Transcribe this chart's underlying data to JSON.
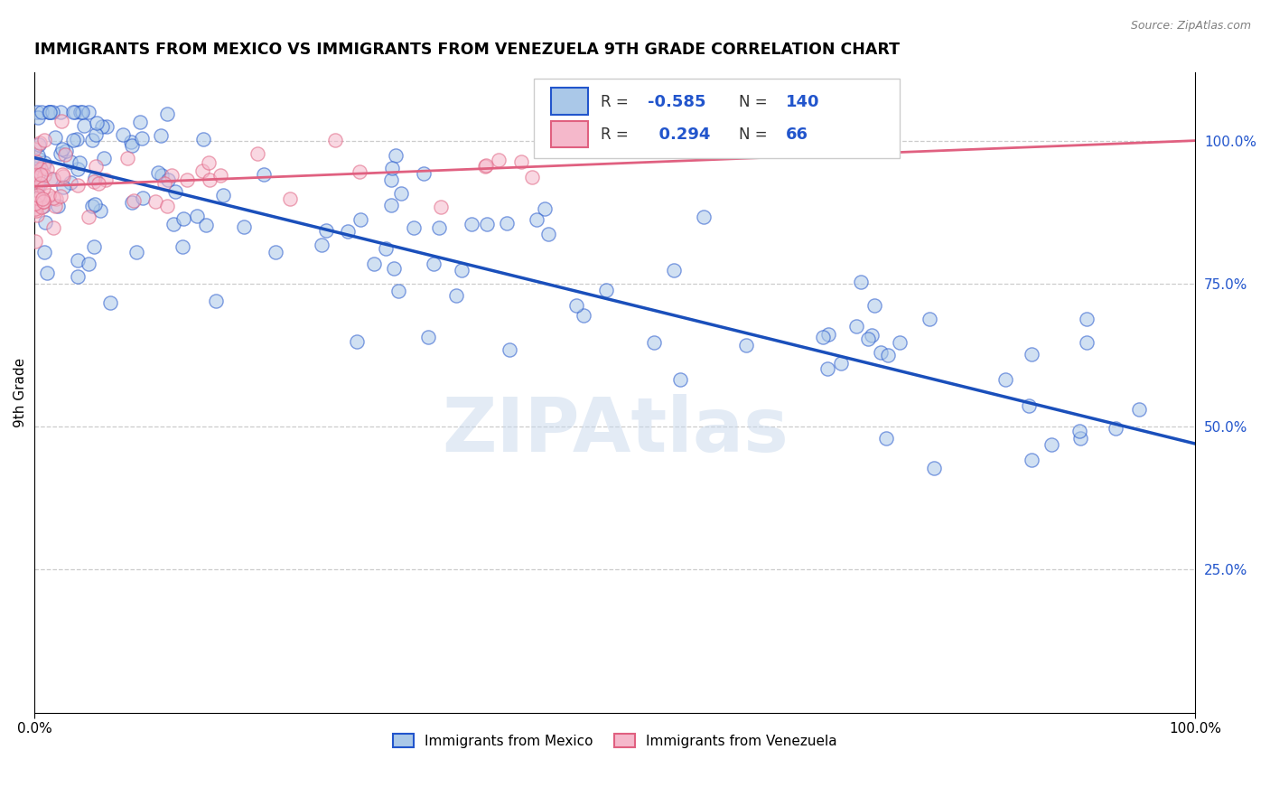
{
  "title": "IMMIGRANTS FROM MEXICO VS IMMIGRANTS FROM VENEZUELA 9TH GRADE CORRELATION CHART",
  "source": "Source: ZipAtlas.com",
  "ylabel": "9th Grade",
  "watermark": "ZIPAtlas",
  "blue_R": -0.585,
  "blue_N": 140,
  "pink_R": 0.294,
  "pink_N": 66,
  "blue_fill": "#aac8e8",
  "blue_edge": "#2255cc",
  "blue_line": "#1a4fbb",
  "pink_fill": "#f5b8cb",
  "pink_edge": "#e06080",
  "pink_line": "#e06080",
  "legend_blue_label": "Immigrants from Mexico",
  "legend_pink_label": "Immigrants from Venezuela",
  "blue_trend_x0": 0.0,
  "blue_trend_x1": 1.0,
  "blue_trend_y0": 0.97,
  "blue_trend_y1": 0.47,
  "pink_trend_x0": 0.0,
  "pink_trend_x1": 1.0,
  "pink_trend_y0": 0.92,
  "pink_trend_y1": 1.0,
  "grid_color": "#cccccc",
  "bg_color": "#ffffff",
  "title_fontsize": 12.5,
  "right_tick_color": "#2255cc",
  "marker_size": 120,
  "xlim": [
    0.0,
    1.0
  ],
  "ylim": [
    0.0,
    1.12
  ],
  "yticks": [
    0.25,
    0.5,
    0.75,
    1.0
  ],
  "ytick_labels": [
    "25.0%",
    "50.0%",
    "75.0%",
    "100.0%"
  ]
}
